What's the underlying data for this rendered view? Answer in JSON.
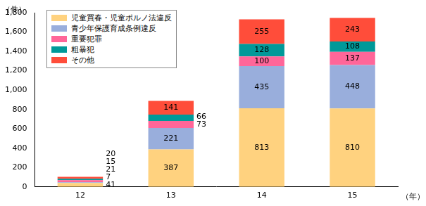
{
  "chart_data": {
    "type": "bar",
    "stacked": true,
    "data_labels": true,
    "legend": "upper left",
    "grid": false,
    "ylabel": "（件）",
    "xlabel": "（年）",
    "categories": [
      "12",
      "13",
      "14",
      "15"
    ],
    "series": [
      {
        "name": "児童買春・児童ポルノ法違反",
        "color": "#ffd27f",
        "values": [
          41,
          387,
          813,
          810
        ]
      },
      {
        "name": "青少年保護育成条例違反",
        "color": "#99aedc",
        "values": [
          7,
          221,
          435,
          448
        ]
      },
      {
        "name": "重要犯罪",
        "color": "#ff6699",
        "values": [
          21,
          73,
          100,
          137
        ]
      },
      {
        "name": "粗暴犯",
        "color": "#009999",
        "values": [
          15,
          66,
          128,
          108
        ]
      },
      {
        "name": "その他",
        "color": "#ff4d3a",
        "values": [
          20,
          141,
          255,
          243
        ]
      }
    ],
    "ylim": [
      0,
      1800
    ],
    "yticks": [
      0,
      200,
      400,
      600,
      800,
      {
        "value": 1000,
        "label": "1,000"
      },
      {
        "value": 1200,
        "label": "1,200"
      },
      {
        "value": 1400,
        "label": "1,400"
      },
      {
        "value": 1600,
        "label": "1,600"
      },
      {
        "value": 1800,
        "label": "1,800"
      }
    ]
  }
}
